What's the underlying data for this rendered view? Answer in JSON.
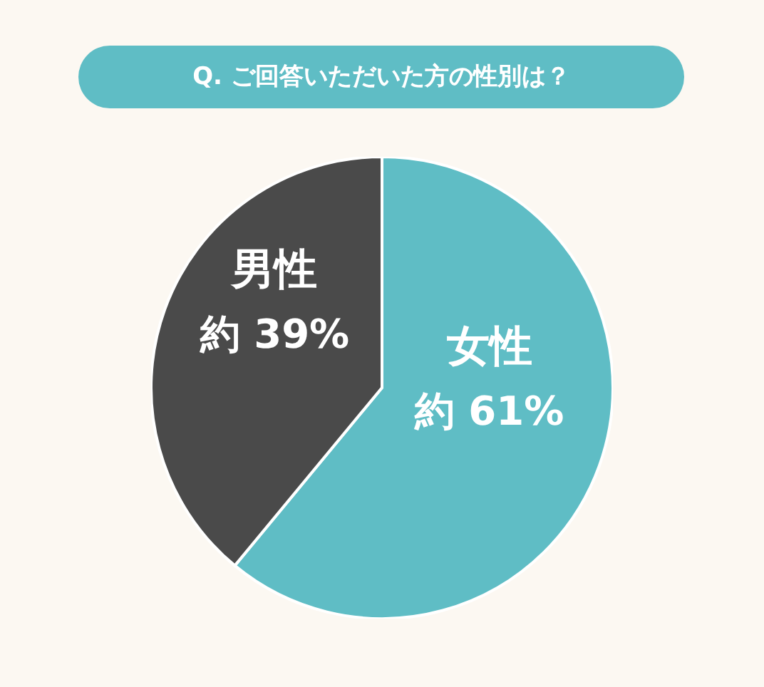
{
  "chart_data": {
    "type": "pie",
    "title": "Q. ご回答いただいた方の性別は？",
    "categories": [
      "女性",
      "男性"
    ],
    "values": [
      61,
      39
    ],
    "colors": [
      "#5fbdc5",
      "#4a4a4a"
    ],
    "value_labels": [
      "約 61%",
      "約 39%"
    ]
  }
}
